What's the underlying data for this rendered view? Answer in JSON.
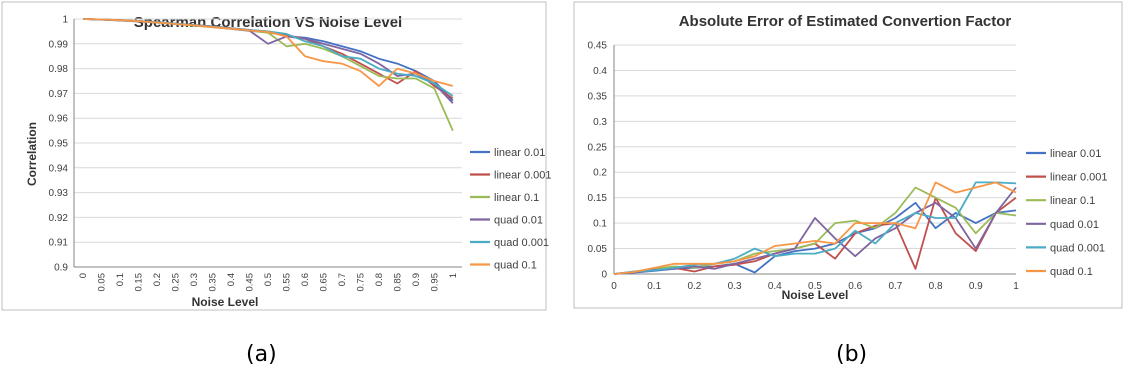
{
  "captions": [
    "(a)",
    "(b)"
  ],
  "chart_data": [
    {
      "type": "line",
      "title": "Spearman Correlation VS Noise Level",
      "xlabel": "Noise Level",
      "ylabel": "Correlation",
      "ylim": [
        0.9,
        1
      ],
      "y_ticks": [
        0.9,
        0.91,
        0.92,
        0.93,
        0.94,
        0.95,
        0.96,
        0.97,
        0.98,
        0.99,
        1
      ],
      "y_tick_labels": [
        "0.9",
        "0.91",
        "0.92",
        "0.93",
        "0.94",
        "0.95",
        "0.96",
        "0.97",
        "0.98",
        "0.99",
        "1"
      ],
      "x_tick_labels": [
        "0",
        "0.05",
        "0.1",
        "0.15",
        "0.2",
        "0.25",
        "0.3",
        "0.35",
        "0.4",
        "0.45",
        "0.5",
        "0.55",
        "0.6",
        "0.65",
        "0.7",
        "0.75",
        "0.8",
        "0.85",
        "0.9",
        "0.95",
        "1"
      ],
      "x": [
        0,
        0.05,
        0.1,
        0.15,
        0.2,
        0.25,
        0.3,
        0.35,
        0.4,
        0.45,
        0.5,
        0.55,
        0.6,
        0.65,
        0.7,
        0.75,
        0.8,
        0.85,
        0.9,
        0.95,
        1
      ],
      "grid": true,
      "legend": "right",
      "series": [
        {
          "name": "linear 0.01",
          "color": "#4472C4",
          "values": [
            1,
            0.9998,
            0.9995,
            0.9992,
            0.9988,
            0.998,
            0.9975,
            0.997,
            0.9963,
            0.9956,
            0.995,
            0.993,
            0.9925,
            0.991,
            0.989,
            0.987,
            0.984,
            0.982,
            0.979,
            0.975,
            0.967
          ]
        },
        {
          "name": "linear 0.001",
          "color": "#C0504D",
          "values": [
            1,
            0.9998,
            0.9995,
            0.9991,
            0.9987,
            0.9982,
            0.9976,
            0.997,
            0.9962,
            0.9955,
            0.9945,
            0.9935,
            0.992,
            0.989,
            0.986,
            0.982,
            0.978,
            0.974,
            0.979,
            0.973,
            0.968
          ]
        },
        {
          "name": "linear 0.1",
          "color": "#9BBB59",
          "values": [
            1,
            0.9998,
            0.9994,
            0.999,
            0.9985,
            0.998,
            0.9973,
            0.9967,
            0.996,
            0.9952,
            0.9945,
            0.989,
            0.99,
            0.988,
            0.985,
            0.981,
            0.977,
            0.976,
            0.976,
            0.972,
            0.955
          ]
        },
        {
          "name": "quad 0.01",
          "color": "#8064A2",
          "values": [
            1,
            0.9997,
            0.9994,
            0.999,
            0.9986,
            0.9981,
            0.9974,
            0.9968,
            0.996,
            0.9953,
            0.99,
            0.993,
            0.992,
            0.99,
            0.988,
            0.986,
            0.982,
            0.977,
            0.978,
            0.974,
            0.966
          ]
        },
        {
          "name": "quad 0.001",
          "color": "#4BACC6",
          "values": [
            1,
            0.9998,
            0.9995,
            0.9992,
            0.9987,
            0.9981,
            0.9975,
            0.9969,
            0.9962,
            0.9955,
            0.995,
            0.994,
            0.991,
            0.989,
            0.985,
            0.984,
            0.98,
            0.978,
            0.977,
            0.974,
            0.969
          ]
        },
        {
          "name": "quad 0.1",
          "color": "#F79646",
          "values": [
            1,
            0.9998,
            0.9995,
            0.9991,
            0.9986,
            0.998,
            0.9974,
            0.9967,
            0.9961,
            0.9954,
            0.9948,
            0.993,
            0.985,
            0.983,
            0.982,
            0.979,
            0.973,
            0.98,
            0.978,
            0.975,
            0.973
          ]
        }
      ]
    },
    {
      "type": "line",
      "title": "Absolute Error of Estimated Convertion Factor",
      "xlabel": "Noise Level",
      "ylabel": "",
      "ylim": [
        0,
        0.45
      ],
      "xlim": [
        0,
        1
      ],
      "y_ticks": [
        0,
        0.05,
        0.1,
        0.15,
        0.2,
        0.25,
        0.3,
        0.35,
        0.4,
        0.45
      ],
      "y_tick_labels": [
        "0",
        "0.05",
        "0.1",
        "0.15",
        "0.2",
        "0.25",
        "0.3",
        "0.35",
        "0.4",
        "0.45"
      ],
      "x_ticks": [
        0,
        0.1,
        0.2,
        0.3,
        0.4,
        0.5,
        0.6,
        0.7,
        0.8,
        0.9,
        1
      ],
      "x_tick_labels": [
        "0",
        "0.1",
        "0.2",
        "0.3",
        "0.4",
        "0.5",
        "0.6",
        "0.7",
        "0.8",
        "0.9",
        "1"
      ],
      "x": [
        0,
        0.05,
        0.1,
        0.15,
        0.2,
        0.25,
        0.3,
        0.35,
        0.4,
        0.45,
        0.5,
        0.55,
        0.6,
        0.65,
        0.7,
        0.75,
        0.8,
        0.85,
        0.9,
        0.95,
        1
      ],
      "grid": true,
      "legend": "right",
      "series": [
        {
          "name": "linear 0.01",
          "color": "#4472C4",
          "values": [
            0,
            0.003,
            0.006,
            0.01,
            0.012,
            0.015,
            0.02,
            0.003,
            0.035,
            0.045,
            0.05,
            0.06,
            0.08,
            0.09,
            0.11,
            0.14,
            0.09,
            0.12,
            0.1,
            0.12,
            0.125
          ]
        },
        {
          "name": "linear 0.001",
          "color": "#C0504D",
          "values": [
            0,
            0.004,
            0.008,
            0.012,
            0.005,
            0.015,
            0.018,
            0.025,
            0.04,
            0.05,
            0.06,
            0.03,
            0.08,
            0.095,
            0.1,
            0.01,
            0.15,
            0.08,
            0.045,
            0.12,
            0.15
          ]
        },
        {
          "name": "linear 0.1",
          "color": "#9BBB59",
          "values": [
            0,
            0.005,
            0.01,
            0.015,
            0.012,
            0.02,
            0.025,
            0.04,
            0.045,
            0.05,
            0.06,
            0.1,
            0.105,
            0.09,
            0.12,
            0.17,
            0.15,
            0.13,
            0.08,
            0.12,
            0.115
          ]
        },
        {
          "name": "quad 0.01",
          "color": "#8064A2",
          "values": [
            0,
            0.004,
            0.008,
            0.01,
            0.015,
            0.01,
            0.02,
            0.03,
            0.04,
            0.05,
            0.11,
            0.07,
            0.035,
            0.07,
            0.09,
            0.12,
            0.14,
            0.11,
            0.05,
            0.12,
            0.17
          ]
        },
        {
          "name": "quad 0.001",
          "color": "#4BACC6",
          "values": [
            0,
            0.005,
            0.007,
            0.012,
            0.018,
            0.02,
            0.03,
            0.05,
            0.035,
            0.04,
            0.04,
            0.05,
            0.085,
            0.06,
            0.1,
            0.12,
            0.11,
            0.11,
            0.18,
            0.18,
            0.178
          ]
        },
        {
          "name": "quad 0.1",
          "color": "#F79646",
          "values": [
            0,
            0.004,
            0.012,
            0.02,
            0.02,
            0.02,
            0.025,
            0.035,
            0.055,
            0.06,
            0.065,
            0.06,
            0.1,
            0.1,
            0.1,
            0.09,
            0.18,
            0.16,
            0.17,
            0.18,
            0.16
          ]
        }
      ]
    }
  ]
}
